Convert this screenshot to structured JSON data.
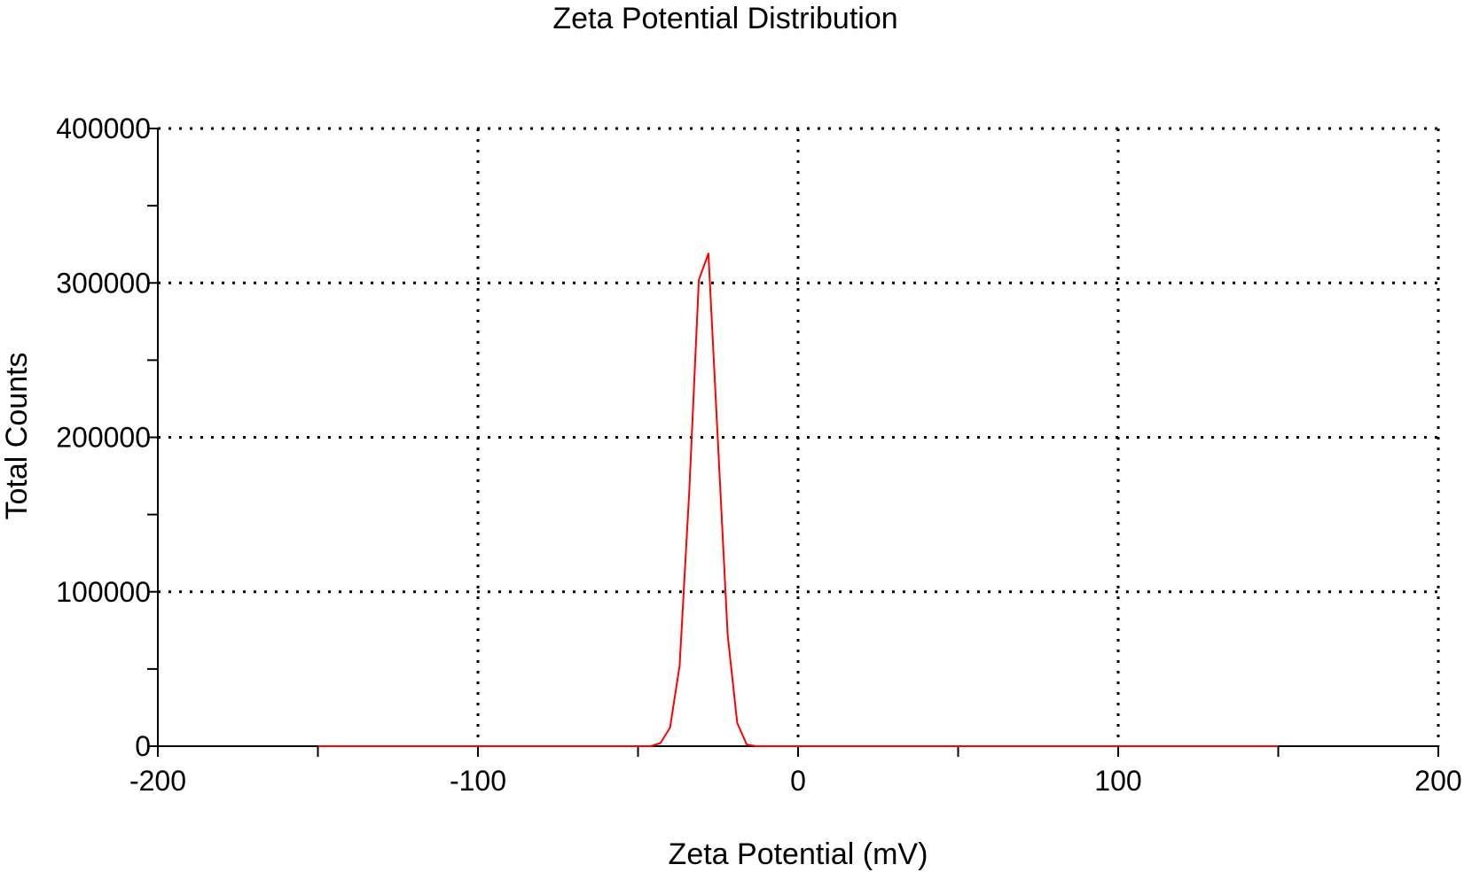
{
  "chart_data": {
    "type": "line",
    "title": "Zeta Potential Distribution",
    "xlabel": "Zeta Potential (mV)",
    "ylabel": "Total Counts",
    "xlim": [
      -200,
      200
    ],
    "ylim": [
      0,
      400000
    ],
    "x_ticks": [
      -200,
      -100,
      0,
      100,
      200
    ],
    "x_tick_labels": [
      "-200",
      "-100",
      "0",
      "100",
      "200"
    ],
    "x_minor_ticks": [
      -150,
      -50,
      50,
      150
    ],
    "y_ticks": [
      0,
      100000,
      200000,
      300000,
      400000
    ],
    "y_tick_labels": [
      "0",
      "100000",
      "200000",
      "300000",
      "400000"
    ],
    "y_minor_ticks": [
      50000,
      150000,
      250000,
      350000
    ],
    "grid": true,
    "grid_style": "dotted",
    "legend": "none",
    "series": [
      {
        "color": "#ff0000",
        "x": [
          -150,
          -46,
          -43,
          -40,
          -37,
          -34,
          -31,
          -28,
          -25,
          -22,
          -19,
          -16,
          -13,
          -10,
          150
        ],
        "y": [
          0,
          0,
          2000,
          12000,
          52000,
          165000,
          302000,
          319000,
          195000,
          72000,
          15000,
          1000,
          0,
          0,
          0
        ]
      }
    ]
  }
}
